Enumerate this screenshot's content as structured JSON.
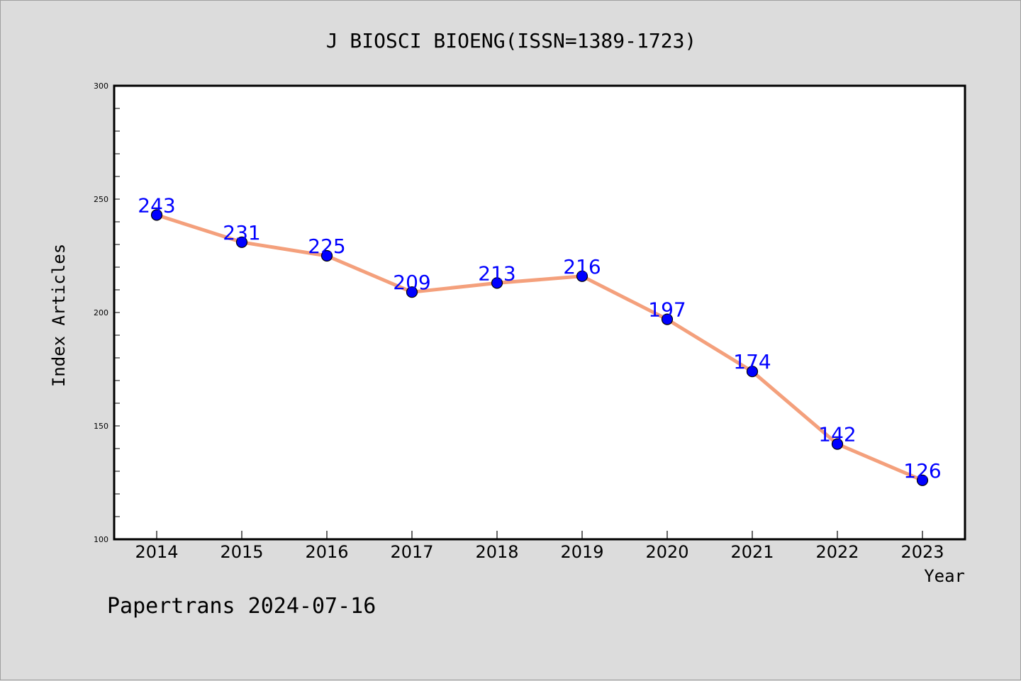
{
  "chart_data": {
    "type": "line",
    "title": "J BIOSCI BIOENG(ISSN=1389-1723)",
    "xlabel": "Year",
    "ylabel": "Index Articles",
    "categories": [
      "2014",
      "2015",
      "2016",
      "2017",
      "2018",
      "2019",
      "2020",
      "2021",
      "2022",
      "2023"
    ],
    "values": [
      243,
      231,
      225,
      209,
      213,
      216,
      197,
      174,
      142,
      126
    ],
    "ylim": [
      100,
      300
    ],
    "yticks": [
      "100",
      "150",
      "200",
      "250",
      "300"
    ],
    "grid": false,
    "line_color": "#f4a07c",
    "marker_color": "#0000ff",
    "label_color": "#0000ff"
  },
  "footer": {
    "watermark": "Papertrans 2024-07-16"
  }
}
